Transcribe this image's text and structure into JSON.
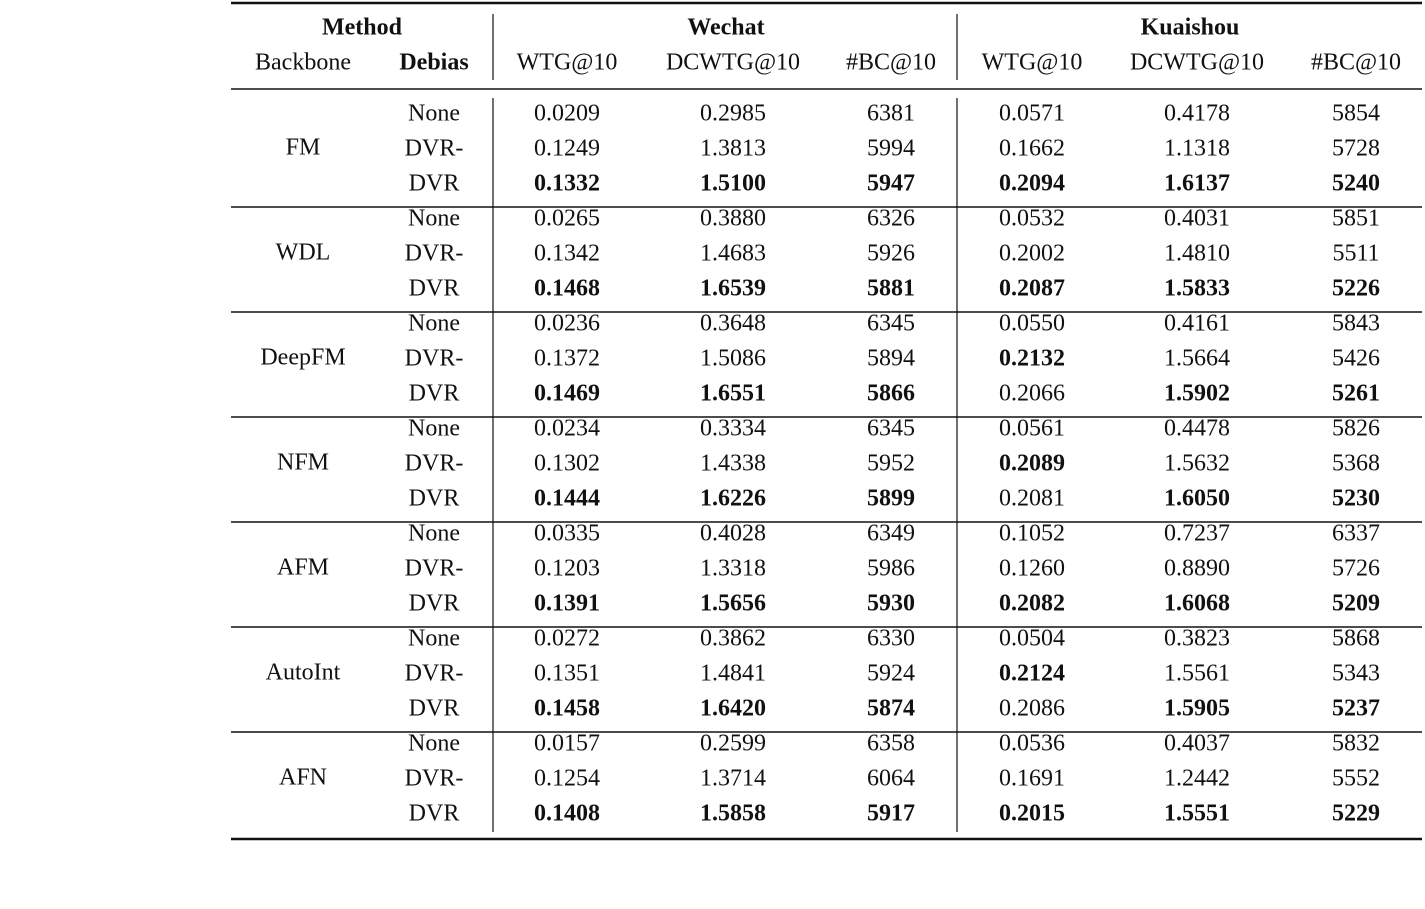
{
  "header": {
    "method": "Method",
    "backbone": "Backbone",
    "debias": "Debias",
    "groups": [
      {
        "name": "Wechat",
        "metrics": [
          "WTG@10",
          "DCWTG@10",
          "#BC@10"
        ]
      },
      {
        "name": "Kuaishou",
        "metrics": [
          "WTG@10",
          "DCWTG@10",
          "#BC@10"
        ]
      }
    ]
  },
  "table": {
    "groups": [
      {
        "backbone": "FM",
        "rows": [
          {
            "debias": "None",
            "values": [
              "0.0209",
              "0.2985",
              "6381",
              "0.0571",
              "0.4178",
              "5854"
            ]
          },
          {
            "debias": "DVR-",
            "values": [
              "0.1249",
              "1.3813",
              "5994",
              "0.1662",
              "1.1318",
              "5728"
            ]
          },
          {
            "debias": "DVR",
            "values": [
              "0.1332",
              "1.5100",
              "5947",
              "0.2094",
              "1.6137",
              "5240"
            ],
            "bold": [
              true,
              true,
              true,
              true,
              true,
              true
            ]
          }
        ]
      },
      {
        "backbone": "WDL",
        "rows": [
          {
            "debias": "None",
            "values": [
              "0.0265",
              "0.3880",
              "6326",
              "0.0532",
              "0.4031",
              "5851"
            ]
          },
          {
            "debias": "DVR-",
            "values": [
              "0.1342",
              "1.4683",
              "5926",
              "0.2002",
              "1.4810",
              "5511"
            ]
          },
          {
            "debias": "DVR",
            "values": [
              "0.1468",
              "1.6539",
              "5881",
              "0.2087",
              "1.5833",
              "5226"
            ],
            "bold": [
              true,
              true,
              true,
              true,
              true,
              true
            ]
          }
        ]
      },
      {
        "backbone": "DeepFM",
        "rows": [
          {
            "debias": "None",
            "values": [
              "0.0236",
              "0.3648",
              "6345",
              "0.0550",
              "0.4161",
              "5843"
            ]
          },
          {
            "debias": "DVR-",
            "values": [
              "0.1372",
              "1.5086",
              "5894",
              "0.2132",
              "1.5664",
              "5426"
            ],
            "bold": [
              false,
              false,
              false,
              true,
              false,
              false
            ]
          },
          {
            "debias": "DVR",
            "values": [
              "0.1469",
              "1.6551",
              "5866",
              "0.2066",
              "1.5902",
              "5261"
            ],
            "bold": [
              true,
              true,
              true,
              false,
              true,
              true
            ]
          }
        ]
      },
      {
        "backbone": "NFM",
        "rows": [
          {
            "debias": "None",
            "values": [
              "0.0234",
              "0.3334",
              "6345",
              "0.0561",
              "0.4478",
              "5826"
            ]
          },
          {
            "debias": "DVR-",
            "values": [
              "0.1302",
              "1.4338",
              "5952",
              "0.2089",
              "1.5632",
              "5368"
            ],
            "bold": [
              false,
              false,
              false,
              true,
              false,
              false
            ]
          },
          {
            "debias": "DVR",
            "values": [
              "0.1444",
              "1.6226",
              "5899",
              "0.2081",
              "1.6050",
              "5230"
            ],
            "bold": [
              true,
              true,
              true,
              false,
              true,
              true
            ]
          }
        ]
      },
      {
        "backbone": "AFM",
        "rows": [
          {
            "debias": "None",
            "values": [
              "0.0335",
              "0.4028",
              "6349",
              "0.1052",
              "0.7237",
              "6337"
            ]
          },
          {
            "debias": "DVR-",
            "values": [
              "0.1203",
              "1.3318",
              "5986",
              "0.1260",
              "0.8890",
              "5726"
            ]
          },
          {
            "debias": "DVR",
            "values": [
              "0.1391",
              "1.5656",
              "5930",
              "0.2082",
              "1.6068",
              "5209"
            ],
            "bold": [
              true,
              true,
              true,
              true,
              true,
              true
            ]
          }
        ]
      },
      {
        "backbone": "AutoInt",
        "rows": [
          {
            "debias": "None",
            "values": [
              "0.0272",
              "0.3862",
              "6330",
              "0.0504",
              "0.3823",
              "5868"
            ]
          },
          {
            "debias": "DVR-",
            "values": [
              "0.1351",
              "1.4841",
              "5924",
              "0.2124",
              "1.5561",
              "5343"
            ],
            "bold": [
              false,
              false,
              false,
              true,
              false,
              false
            ]
          },
          {
            "debias": "DVR",
            "values": [
              "0.1458",
              "1.6420",
              "5874",
              "0.2086",
              "1.5905",
              "5237"
            ],
            "bold": [
              true,
              true,
              true,
              false,
              true,
              true
            ]
          }
        ]
      },
      {
        "backbone": "AFN",
        "rows": [
          {
            "debias": "None",
            "values": [
              "0.0157",
              "0.2599",
              "6358",
              "0.0536",
              "0.4037",
              "5832"
            ]
          },
          {
            "debias": "DVR-",
            "values": [
              "0.1254",
              "1.3714",
              "6064",
              "0.1691",
              "1.2442",
              "5552"
            ]
          },
          {
            "debias": "DVR",
            "values": [
              "0.1408",
              "1.5858",
              "5917",
              "0.2015",
              "1.5551",
              "5229"
            ],
            "bold": [
              true,
              true,
              true,
              true,
              true,
              true
            ]
          }
        ]
      }
    ]
  }
}
